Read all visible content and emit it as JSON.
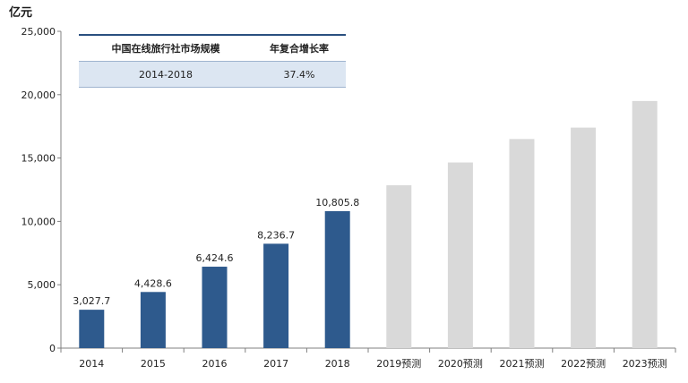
{
  "chart_data": {
    "type": "bar",
    "unit_label": "亿元",
    "categories": [
      "2014",
      "2015",
      "2016",
      "2017",
      "2018",
      "2019预测",
      "2020预测",
      "2021预测",
      "2022预测",
      "2023预测"
    ],
    "values": [
      3027.7,
      4428.6,
      6424.6,
      8236.7,
      10805.8,
      12850,
      14650,
      16500,
      17400,
      19500
    ],
    "data_labels": [
      "3,027.7",
      "4,428.6",
      "6,424.6",
      "8,236.7",
      "10,805.8",
      "",
      "",
      "",
      "",
      ""
    ],
    "forecast_from_index": 5,
    "colors": {
      "actual": "#2e5a8d",
      "forecast": "#d9d9d9"
    },
    "ylim": [
      0,
      25000
    ],
    "yticks": [
      0,
      5000,
      10000,
      15000,
      20000,
      25000
    ],
    "ytick_labels": [
      "0",
      "5,000",
      "10,000",
      "15,000",
      "20,000",
      "25,000"
    ],
    "grid": false,
    "title": "",
    "xlabel": "",
    "ylabel": ""
  },
  "cagr_table": {
    "header": [
      "中国在线旅行社市场规模",
      "年复合增长率"
    ],
    "row": [
      "2014-2018",
      "37.4%"
    ]
  }
}
